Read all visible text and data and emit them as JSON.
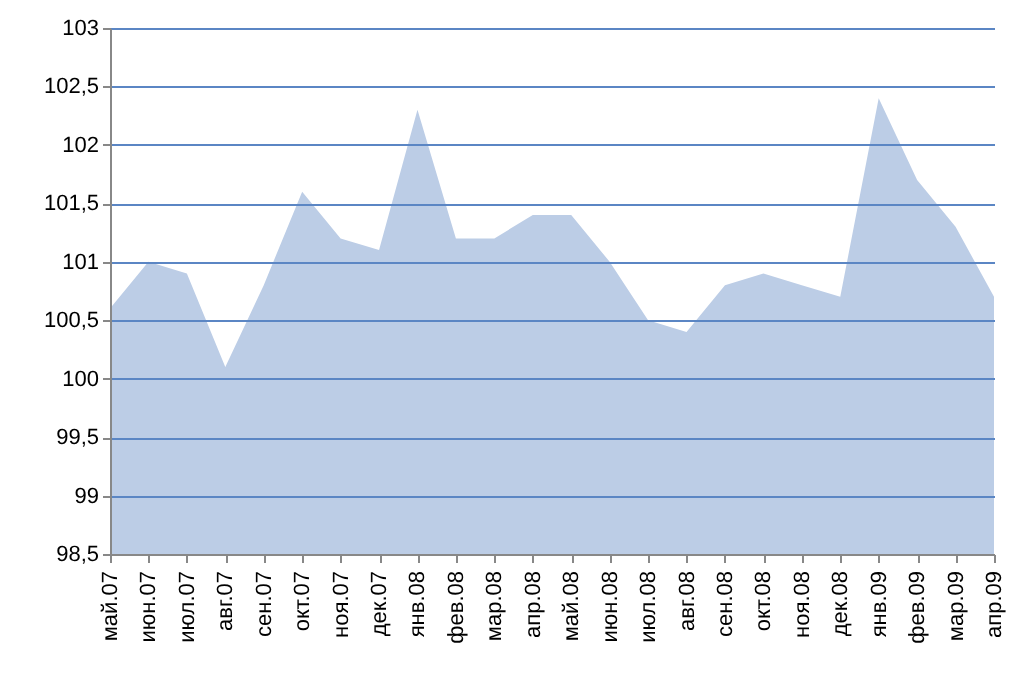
{
  "chart_data": {
    "type": "area",
    "categories": [
      "май.07",
      "июн.07",
      "июл.07",
      "авг.07",
      "сен.07",
      "окт.07",
      "ноя.07",
      "дек.07",
      "янв.08",
      "фев.08",
      "мар.08",
      "апр.08",
      "май.08",
      "июн.08",
      "июл.08",
      "авг.08",
      "сен.08",
      "окт.08",
      "ноя.08",
      "дек.08",
      "янв.09",
      "фев.09",
      "мар.09",
      "апр.09"
    ],
    "series": [
      {
        "color": "#bccde6",
        "values": [
          100.6,
          101.0,
          100.9,
          100.1,
          100.8,
          101.6,
          101.2,
          101.1,
          102.3,
          101.2,
          101.2,
          101.4,
          101.4,
          101.0,
          100.5,
          100.4,
          100.8,
          100.9,
          100.8,
          100.7,
          102.4,
          101.7,
          101.3,
          100.7
        ]
      }
    ],
    "ylim": [
      98.5,
      103
    ],
    "yticks": [
      {
        "value": 98.5,
        "label": "98,5"
      },
      99,
      {
        "value": 99.5,
        "label": "99,5"
      },
      100,
      {
        "value": 100.5,
        "label": "100,5"
      },
      101,
      {
        "value": 101.5,
        "label": "101,5"
      },
      102,
      {
        "value": 102.5,
        "label": "102,5"
      },
      103
    ],
    "grid": "y"
  }
}
